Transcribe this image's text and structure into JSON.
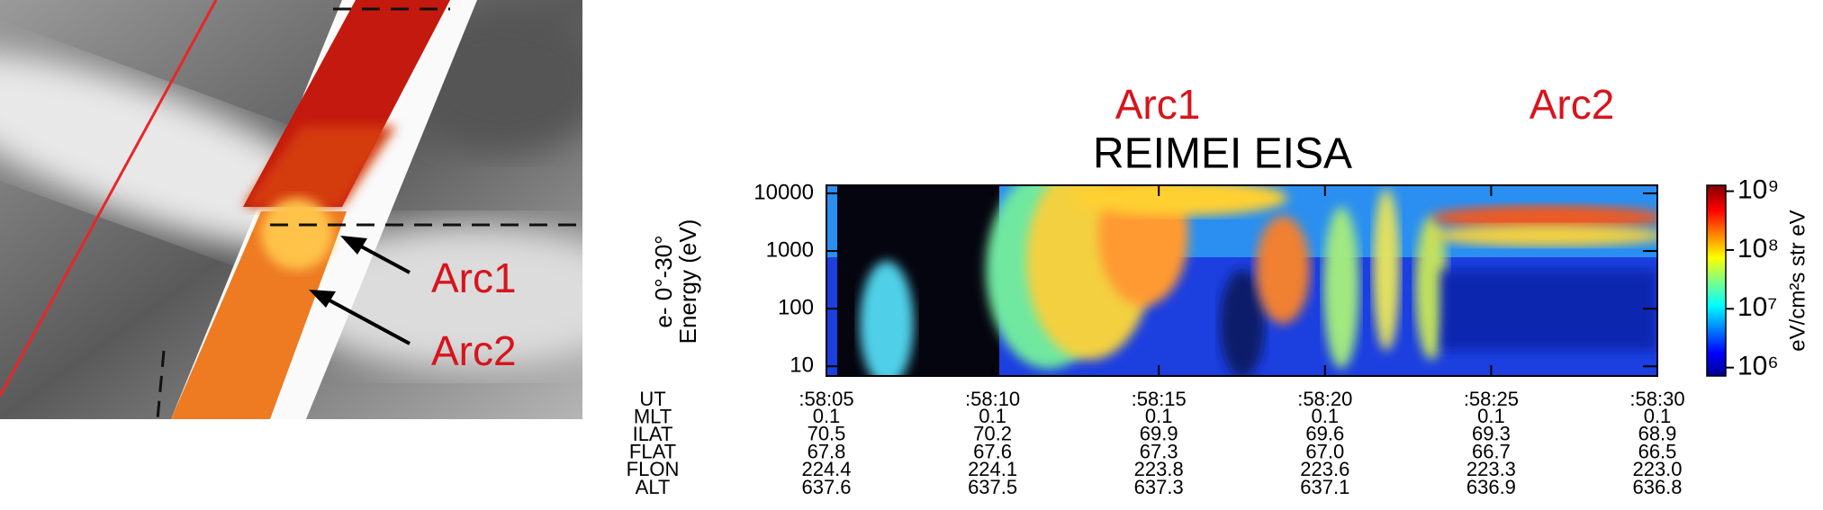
{
  "left_image": {
    "labels": [
      "Arc1",
      "Arc2"
    ]
  },
  "chart_data": {
    "type": "spectrogram",
    "title": "REIMEI EISA",
    "annotations": [
      "Arc1",
      "Arc2"
    ],
    "ylabel": [
      "e- 0°-30°",
      "Energy (eV)"
    ],
    "ylog": true,
    "ylim": [
      6.8,
      13800
    ],
    "yticks": [
      10,
      100,
      1000,
      10000
    ],
    "xlim": [
      5,
      30
    ],
    "xticks": [
      {
        "value": 5,
        "label": ":58:05"
      },
      {
        "value": 10,
        "label": ":58:10"
      },
      {
        "value": 15,
        "label": ":58:15"
      },
      {
        "value": 20,
        "label": ":58:20"
      },
      {
        "value": 25,
        "label": ":58:25"
      },
      {
        "value": 30,
        "label": ":58:30"
      }
    ],
    "colorbar": {
      "label": "eV/cm²s str eV",
      "log": true,
      "lim": [
        720000,
        1260000000
      ],
      "ticks": [
        {
          "value": 1000000,
          "label": "10⁶"
        },
        {
          "value": 10000000,
          "label": "10⁷"
        },
        {
          "value": 100000000,
          "label": "10⁸"
        },
        {
          "value": 1000000000,
          "label": "10⁹"
        }
      ]
    },
    "ephemeris": {
      "names": [
        "UT",
        "MLT",
        "ILAT",
        "FLAT",
        "FLON",
        "ALT"
      ],
      "rows": [
        [
          "0.1",
          "0.1",
          "0.1",
          "0.1",
          "0.1",
          "0.1"
        ],
        [
          "70.5",
          "70.2",
          "69.9",
          "69.6",
          "69.3",
          "68.9"
        ],
        [
          "67.8",
          "67.6",
          "67.3",
          "67.0",
          "66.7",
          "66.5"
        ],
        [
          "224.4",
          "224.1",
          "223.8",
          "223.6",
          "223.3",
          "223.0"
        ],
        [
          "637.6",
          "637.5",
          "637.3",
          "637.1",
          "636.9",
          "636.8"
        ]
      ]
    }
  }
}
